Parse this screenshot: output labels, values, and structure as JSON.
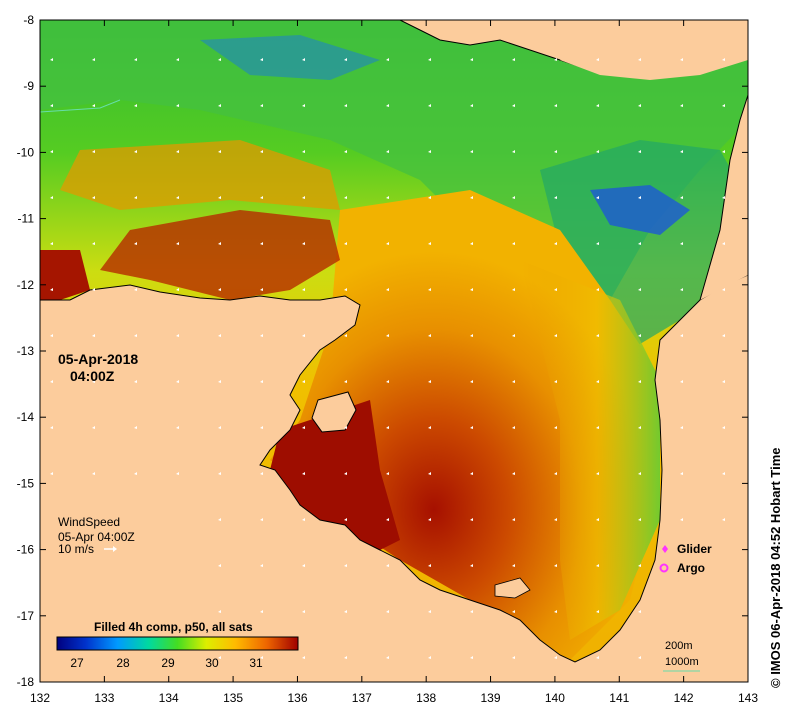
{
  "map": {
    "date": "05-Apr-2018",
    "time": "04:00Z",
    "wind": {
      "title": "WindSpeed",
      "time": "05-Apr 04:00Z",
      "scale_label": "10 m/s"
    },
    "colorbar": {
      "title": "Filled 4h comp, p50, all sats",
      "ticks": [
        "27",
        "28",
        "29",
        "30",
        "31"
      ]
    },
    "legend": {
      "glider": "Glider",
      "argo": "Argo"
    },
    "contours": {
      "c200": "200m",
      "c1000": "1000m"
    },
    "x_ticks": [
      "132",
      "133",
      "134",
      "135",
      "136",
      "137",
      "138",
      "139",
      "140",
      "141",
      "142",
      "143"
    ],
    "y_ticks": [
      "-8",
      "-9",
      "-10",
      "-11",
      "-12",
      "-13",
      "-14",
      "-15",
      "-16",
      "-17",
      "-18"
    ],
    "credit": "© IMOS 06-Apr-2018 04:52 Hobart Time",
    "colors": {
      "land": "#fccc9c",
      "glider": "#ff33ff",
      "argo": "#ff33ff",
      "contour_1000": "#66ddaa"
    }
  }
}
